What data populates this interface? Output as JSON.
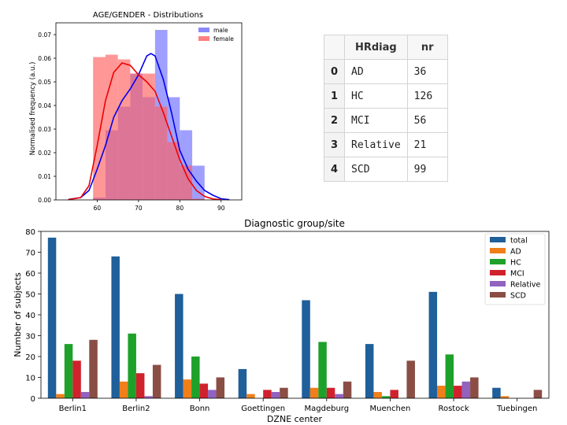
{
  "chart_data": [
    {
      "type": "histogram",
      "title": "AGE/GENDER - Distributions",
      "xlabel": "",
      "ylabel": "Normalised frequency (a.u.)",
      "xlim": [
        50,
        95
      ],
      "ylim": [
        0,
        0.075
      ],
      "xticks": [
        "60",
        "70",
        "80",
        "90"
      ],
      "yticks": [
        "0.00",
        "0.01",
        "0.02",
        "0.03",
        "0.04",
        "0.05",
        "0.06",
        "0.07"
      ],
      "legend_position": "top-right",
      "bin_edges": [
        59,
        62,
        65,
        68,
        71,
        74,
        77,
        80,
        83,
        86
      ],
      "series": [
        {
          "name": "male",
          "color": "#6b6bff",
          "values": [
            0.001,
            0.0295,
            0.0395,
            0.0535,
            0.0435,
            0.072,
            0.0435,
            0.0295,
            0.0145
          ],
          "kde": [
            [
              53,
              0.0002
            ],
            [
              56,
              0.001
            ],
            [
              58,
              0.004
            ],
            [
              60,
              0.013
            ],
            [
              62,
              0.023
            ],
            [
              64,
              0.035
            ],
            [
              66,
              0.042
            ],
            [
              68,
              0.047
            ],
            [
              70,
              0.053
            ],
            [
              72,
              0.061
            ],
            [
              73,
              0.062
            ],
            [
              74,
              0.061
            ],
            [
              76,
              0.051
            ],
            [
              78,
              0.037
            ],
            [
              80,
              0.021
            ],
            [
              82,
              0.013
            ],
            [
              84,
              0.008
            ],
            [
              86,
              0.004
            ],
            [
              88,
              0.002
            ],
            [
              90,
              0.0005
            ],
            [
              92,
              0.0001
            ]
          ]
        },
        {
          "name": "female",
          "color": "#ff6060",
          "values": [
            0.0605,
            0.0615,
            0.0595,
            0.0535,
            0.0535,
            0.0395,
            0.0245,
            0.0145,
            0.0005
          ],
          "kde": [
            [
              53,
              0.0001
            ],
            [
              56,
              0.001
            ],
            [
              58,
              0.006
            ],
            [
              60,
              0.023
            ],
            [
              62,
              0.042
            ],
            [
              64,
              0.054
            ],
            [
              66,
              0.058
            ],
            [
              68,
              0.057
            ],
            [
              70,
              0.053
            ],
            [
              72,
              0.05
            ],
            [
              74,
              0.046
            ],
            [
              76,
              0.037
            ],
            [
              78,
              0.027
            ],
            [
              80,
              0.017
            ],
            [
              82,
              0.009
            ],
            [
              84,
              0.004
            ],
            [
              86,
              0.0015
            ],
            [
              88,
              0.0004
            ],
            [
              90,
              0.0001
            ]
          ]
        }
      ]
    },
    {
      "type": "bar",
      "title": "Diagnostic group/site",
      "xlabel": "DZNE center",
      "ylabel": "Number of subjects",
      "ylim": [
        0,
        80
      ],
      "yticks": [
        "0",
        "10",
        "20",
        "30",
        "40",
        "50",
        "60",
        "70",
        "80"
      ],
      "legend_position": "top-right",
      "categories": [
        "Berlin1",
        "Berlin2",
        "Bonn",
        "Goettingen",
        "Magdeburg",
        "Muenchen",
        "Rostock",
        "Tuebingen"
      ],
      "series": [
        {
          "name": "total",
          "color": "#1f5f9a",
          "values": [
            77,
            68,
            50,
            14,
            47,
            26,
            51,
            5
          ]
        },
        {
          "name": "AD",
          "color": "#f07f1a",
          "values": [
            2,
            8,
            9,
            2,
            5,
            3,
            6,
            1
          ]
        },
        {
          "name": "HC",
          "color": "#1ea12a",
          "values": [
            26,
            31,
            20,
            0,
            27,
            1,
            21,
            0
          ]
        },
        {
          "name": "MCI",
          "color": "#d0222d",
          "values": [
            18,
            12,
            7,
            4,
            5,
            4,
            6,
            0
          ]
        },
        {
          "name": "Relative",
          "color": "#9162be",
          "values": [
            3,
            1,
            4,
            3,
            2,
            0,
            8,
            0
          ]
        },
        {
          "name": "SCD",
          "color": "#8a4e45",
          "values": [
            28,
            16,
            10,
            5,
            8,
            18,
            10,
            4
          ]
        }
      ]
    }
  ],
  "table": {
    "headers": [
      "",
      "HRdiag",
      "nr"
    ],
    "rows": [
      {
        "idx": "0",
        "label": "AD",
        "nr": "36"
      },
      {
        "idx": "1",
        "label": "HC",
        "nr": "126"
      },
      {
        "idx": "2",
        "label": "MCI",
        "nr": "56"
      },
      {
        "idx": "3",
        "label": "Relative",
        "nr": "21"
      },
      {
        "idx": "4",
        "label": "SCD",
        "nr": "99"
      }
    ]
  }
}
